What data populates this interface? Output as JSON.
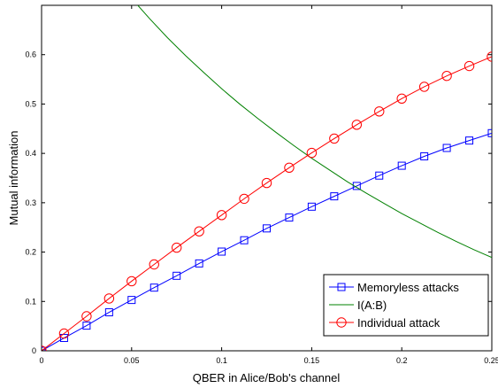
{
  "chart_data": {
    "type": "line",
    "title": "",
    "xlabel": "QBER in Alice/Bob's channel",
    "ylabel": "Mutual information",
    "xlim": [
      0,
      0.25
    ],
    "ylim": [
      0,
      0.7
    ],
    "xticks": [
      0,
      0.05,
      0.1,
      0.15,
      0.2,
      0.25
    ],
    "xtick_labels": [
      "0",
      "0.05",
      "0.1",
      "0.15",
      "0.2",
      "0.25"
    ],
    "yticks": [
      0,
      0.1,
      0.2,
      0.3,
      0.4,
      0.5,
      0.6
    ],
    "ytick_labels": [
      "0",
      "0.1",
      "0.2",
      "0.3",
      "0.4",
      "0.5",
      "0.6"
    ],
    "grid": false,
    "legend_position": "bottom-right",
    "series": [
      {
        "name": "Memoryless attacks",
        "color": "#0000ff",
        "marker": "square",
        "x": [
          0,
          0.0125,
          0.025,
          0.0375,
          0.05,
          0.0625,
          0.075,
          0.0875,
          0.1,
          0.1125,
          0.125,
          0.1375,
          0.15,
          0.1625,
          0.175,
          0.1875,
          0.2,
          0.2125,
          0.225,
          0.2375,
          0.25
        ],
        "y": [
          0,
          0.026,
          0.051,
          0.078,
          0.103,
          0.128,
          0.152,
          0.177,
          0.201,
          0.224,
          0.248,
          0.27,
          0.292,
          0.313,
          0.334,
          0.355,
          0.375,
          0.394,
          0.411,
          0.426,
          0.441
        ]
      },
      {
        "name": "I(A:B)",
        "color": "#008000",
        "marker": "none",
        "x": [
          0.05,
          0.06,
          0.07,
          0.08,
          0.09,
          0.1,
          0.11,
          0.12,
          0.13,
          0.14,
          0.15,
          0.16,
          0.17,
          0.18,
          0.19,
          0.2,
          0.21,
          0.22,
          0.23,
          0.24,
          0.25
        ],
        "y": [
          0.714,
          0.673,
          0.634,
          0.598,
          0.564,
          0.531,
          0.5,
          0.471,
          0.443,
          0.416,
          0.39,
          0.366,
          0.342,
          0.32,
          0.299,
          0.278,
          0.259,
          0.24,
          0.222,
          0.205,
          0.189
        ]
      },
      {
        "name": "Individual attack",
        "color": "#ff0000",
        "marker": "circle",
        "x": [
          0,
          0.0125,
          0.025,
          0.0375,
          0.05,
          0.0625,
          0.075,
          0.0875,
          0.1,
          0.1125,
          0.125,
          0.1375,
          0.15,
          0.1625,
          0.175,
          0.1875,
          0.2,
          0.2125,
          0.225,
          0.2375,
          0.25
        ],
        "y": [
          0,
          0.035,
          0.07,
          0.106,
          0.141,
          0.175,
          0.209,
          0.242,
          0.275,
          0.308,
          0.34,
          0.371,
          0.401,
          0.43,
          0.458,
          0.485,
          0.511,
          0.535,
          0.557,
          0.577,
          0.596
        ]
      }
    ]
  }
}
